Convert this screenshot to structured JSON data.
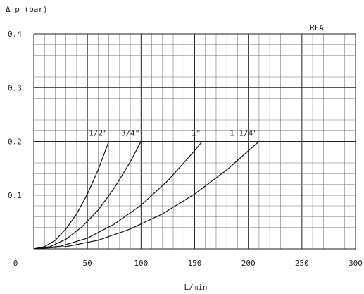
{
  "chart_data": {
    "type": "line",
    "ylabel": "Δ p (bar)",
    "xlabel": "L/min",
    "annotation": "RFA",
    "xlim": [
      0,
      300
    ],
    "ylim": [
      0,
      0.4
    ],
    "x_ticks": [
      0,
      50,
      100,
      150,
      200,
      250,
      300
    ],
    "x_tick_labels": [
      "0",
      "50",
      "100",
      "150",
      "200",
      "250",
      "300"
    ],
    "y_ticks": [
      0.1,
      0.2,
      0.3,
      0.4
    ],
    "y_tick_labels": [
      "0.1",
      "0.2",
      "0.3",
      "0.4"
    ],
    "grid": true,
    "series": [
      {
        "name": "1/2\"",
        "x": [
          0,
          10,
          20,
          30,
          40,
          50,
          60,
          70
        ],
        "y": [
          0,
          0.004,
          0.016,
          0.037,
          0.065,
          0.102,
          0.147,
          0.2
        ]
      },
      {
        "name": "3/4\"",
        "x": [
          0,
          15,
          30,
          45,
          60,
          75,
          90,
          100
        ],
        "y": [
          0,
          0.004,
          0.018,
          0.041,
          0.072,
          0.113,
          0.162,
          0.2
        ]
      },
      {
        "name": "1\"",
        "x": [
          0,
          25,
          50,
          75,
          100,
          125,
          150,
          157
        ],
        "y": [
          0,
          0.005,
          0.02,
          0.046,
          0.081,
          0.127,
          0.183,
          0.2
        ]
      },
      {
        "name": "1 1/4\"",
        "x": [
          0,
          30,
          60,
          90,
          120,
          150,
          180,
          210
        ],
        "y": [
          0,
          0.004,
          0.016,
          0.037,
          0.065,
          0.102,
          0.147,
          0.2
        ]
      }
    ]
  }
}
